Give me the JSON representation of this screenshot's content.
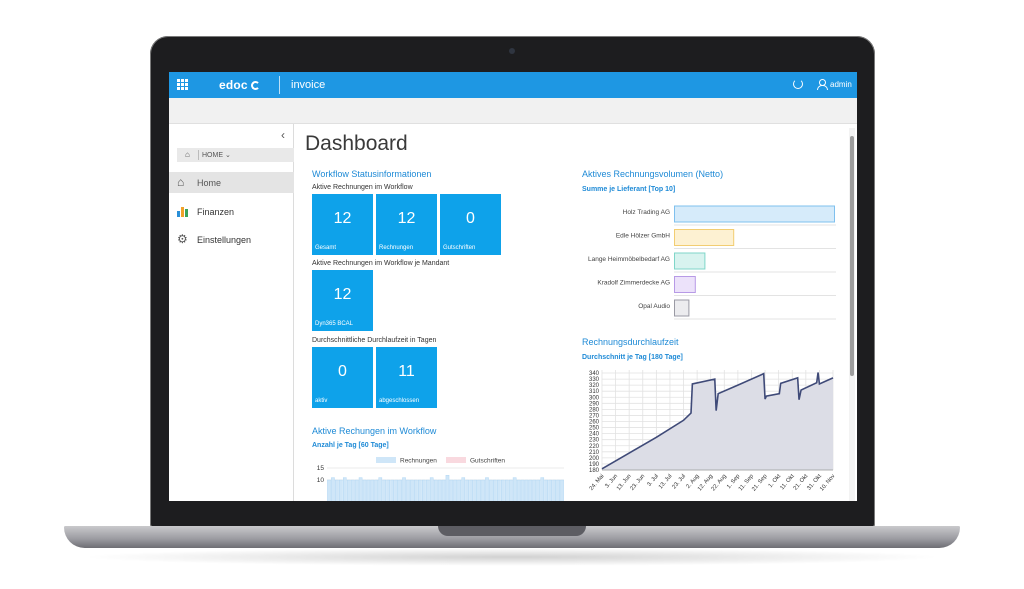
{
  "header": {
    "brand": "edoc",
    "app_name": "invoice",
    "user": "admin"
  },
  "sidebar": {
    "breadcrumb": "HOME ⌄",
    "items": [
      {
        "label": "Home",
        "icon": "home-icon",
        "active": true
      },
      {
        "label": "Finanzen",
        "icon": "finance-icon",
        "active": false
      },
      {
        "label": "Einstellungen",
        "icon": "gears-icon",
        "active": false
      }
    ]
  },
  "main": {
    "title": "Dashboard",
    "workflow": {
      "title": "Workflow Statusinformationen",
      "active_label": "Aktive Rechnungen im Workflow",
      "tiles": [
        {
          "value": "12",
          "caption": "Gesamt"
        },
        {
          "value": "12",
          "caption": "Rechnungen"
        },
        {
          "value": "0",
          "caption": "Gutschriften"
        }
      ],
      "mandant_label": "Aktive Rechnungen im Workflow je Mandant",
      "mandant_tiles": [
        {
          "value": "12",
          "caption": "Dyn365 BCAL"
        }
      ],
      "duration_label": "Durchschnittliche Durchlaufzeit in Tagen",
      "duration_tiles": [
        {
          "value": "0",
          "caption": "aktiv"
        },
        {
          "value": "11",
          "caption": "abgeschlossen"
        }
      ]
    },
    "active_invoices": {
      "title": "Aktive Rechungen im Workflow",
      "subtitle": "Anzahl je Tag [60 Tage]"
    },
    "volume": {
      "title": "Aktives Rechnungsvolumen (Netto)",
      "subtitle": "Summe je Lieferant [Top 10]"
    },
    "throughput": {
      "title": "Rechnungsdurchlaufzeit",
      "subtitle": "Durchschnitt je Tag [180 Tage]"
    }
  },
  "chart_data": [
    {
      "type": "bar",
      "orientation": "horizontal",
      "categories": [
        "Holz Trading AG",
        "Edle Hölzer GmbH",
        "Lange Heimmöbelbedarf AG",
        "Kradolf Zimmerdecke AG",
        "Opal Audio"
      ],
      "values": [
        100,
        37,
        19,
        13,
        9
      ],
      "colors": [
        {
          "fill": "#d6ebfa",
          "stroke": "#7fc0ee"
        },
        {
          "fill": "#fdf1d2",
          "stroke": "#f2cd72"
        },
        {
          "fill": "#d8f3ef",
          "stroke": "#7fd6c9"
        },
        {
          "fill": "#ece2fa",
          "stroke": "#b79ae6"
        },
        {
          "fill": "#ececef",
          "stroke": "#9a9aa4"
        }
      ],
      "xlim": [
        0,
        100
      ]
    },
    {
      "type": "area",
      "x": [
        "24. Mai",
        "3. Jun",
        "13. Jun",
        "23. Jun",
        "3. Jul",
        "13. Jul",
        "23. Jul",
        "2. Aug",
        "12. Aug",
        "22. Aug",
        "1. Sep",
        "11. Sep",
        "21. Sep",
        "1. Okt",
        "11. Okt",
        "21. Okt",
        "31. Okt",
        "10. Nov"
      ],
      "points": [
        [
          0,
          182
        ],
        [
          2,
          208
        ],
        [
          4,
          234
        ],
        [
          6,
          262
        ],
        [
          6.55,
          274
        ],
        [
          6.65,
          322
        ],
        [
          8.3,
          330
        ],
        [
          8.4,
          278
        ],
        [
          8.55,
          306
        ],
        [
          10,
          320
        ],
        [
          11.9,
          339
        ],
        [
          12.0,
          297
        ],
        [
          12.1,
          302
        ],
        [
          13.05,
          306
        ],
        [
          13.15,
          323
        ],
        [
          14.4,
          332
        ],
        [
          14.5,
          296
        ],
        [
          14.65,
          312
        ],
        [
          15.8,
          324
        ],
        [
          15.9,
          341
        ],
        [
          16.0,
          322
        ],
        [
          17,
          332
        ]
      ],
      "y_ticks": [
        180,
        190,
        200,
        210,
        220,
        230,
        240,
        250,
        260,
        270,
        280,
        290,
        300,
        310,
        320,
        330,
        340
      ],
      "ylim": [
        180,
        345
      ],
      "grid": true,
      "colors": {
        "line": "#3f4a78",
        "fill": "#dcdde6"
      }
    },
    {
      "type": "bar",
      "legend": [
        "Rechnungen",
        "Gutschriften"
      ],
      "legend_colors": [
        "#cfe6f8",
        "#f9d9df"
      ],
      "y_ticks": [
        15,
        10
      ],
      "values": [
        10,
        11,
        10,
        10,
        11,
        10,
        10,
        10,
        11,
        10,
        10,
        10,
        10,
        11,
        10,
        10,
        10,
        10,
        10,
        11,
        10,
        10,
        10,
        10,
        10,
        10,
        11,
        10,
        10,
        10,
        12,
        10,
        10,
        10,
        11,
        10,
        10,
        10,
        10,
        10,
        11,
        10,
        10,
        10,
        10,
        10,
        10,
        11,
        10,
        10,
        10,
        10,
        10,
        10,
        11,
        10,
        10,
        10,
        10,
        10
      ],
      "ylim": [
        0,
        15
      ]
    }
  ]
}
